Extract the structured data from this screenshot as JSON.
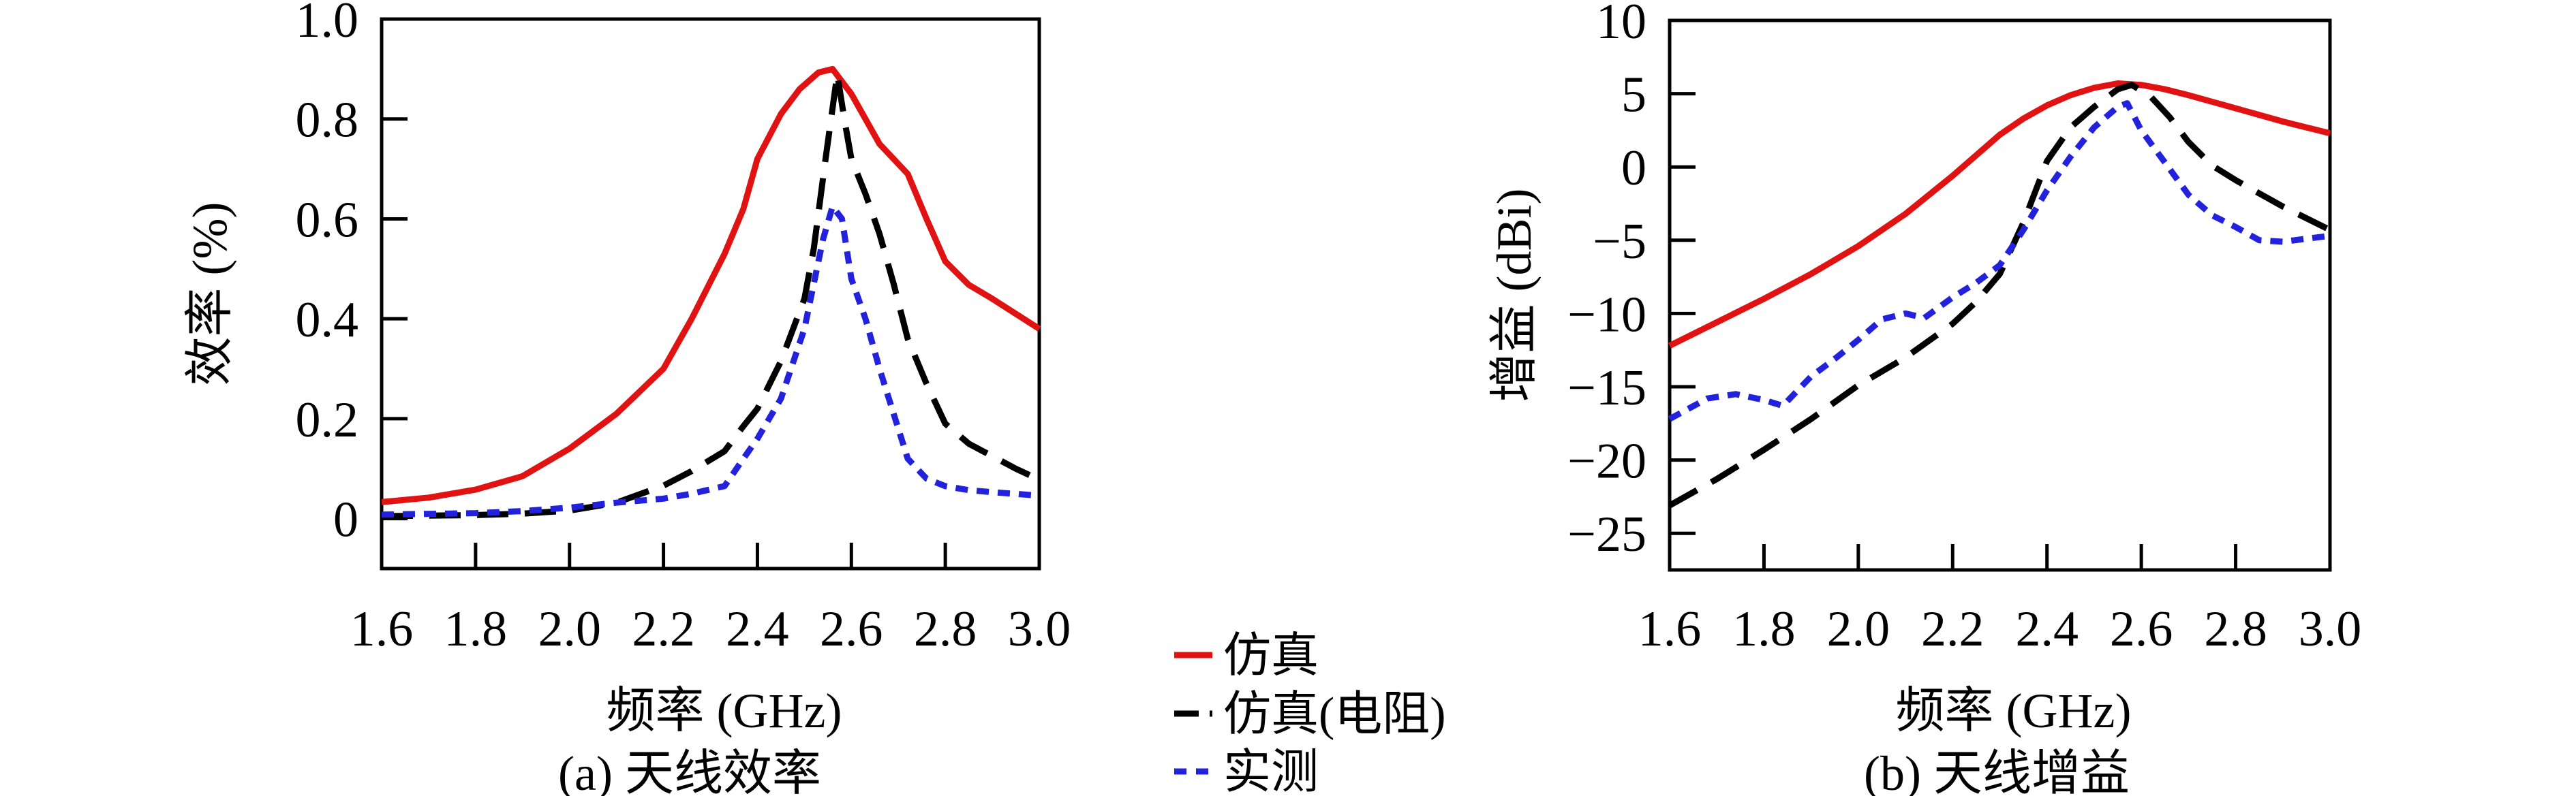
{
  "figure": {
    "background": "#ffffff",
    "frame_color": "#000000",
    "caption_a": "(a) 天线效率",
    "caption_b": "(b) 天线增益"
  },
  "legend": {
    "items": [
      {
        "label": "仿真",
        "color": "#e01212",
        "style": "solid"
      },
      {
        "label": "仿真(电阻)",
        "color": "#000000",
        "style": "dashdot"
      },
      {
        "label": "实测",
        "color": "#2222dd",
        "style": "dotted"
      }
    ]
  },
  "chart_data": [
    {
      "type": "line",
      "id": "efficiency",
      "caption": "(a) 天线效率",
      "xlabel": "频率 (GHz)",
      "ylabel": "效率 (%)",
      "xlim": [
        1.6,
        3.0
      ],
      "ylim": [
        -0.1,
        1.0
      ],
      "grid": false,
      "xtick_labels": [
        "1.6",
        "1.8",
        "2.0",
        "2.2",
        "2.4",
        "2.6",
        "2.8",
        "3.0"
      ],
      "xticks_inner": [
        1.8,
        2.0,
        2.2,
        2.4,
        2.6,
        2.8
      ],
      "ytick_labels": [
        "1.0",
        "0.8",
        "0.6",
        "0.4",
        "0.2",
        "0"
      ],
      "yticks": [
        1.0,
        0.8,
        0.6,
        0.4,
        0.2,
        0
      ],
      "series": [
        {
          "name": "仿真",
          "color": "#e01212",
          "style": "solid",
          "points": [
            [
              1.6,
              0.033
            ],
            [
              1.7,
              0.042
            ],
            [
              1.8,
              0.058
            ],
            [
              1.9,
              0.085
            ],
            [
              2.0,
              0.14
            ],
            [
              2.1,
              0.21
            ],
            [
              2.2,
              0.3
            ],
            [
              2.26,
              0.4
            ],
            [
              2.33,
              0.53
            ],
            [
              2.37,
              0.62
            ],
            [
              2.4,
              0.72
            ],
            [
              2.45,
              0.81
            ],
            [
              2.49,
              0.86
            ],
            [
              2.53,
              0.893
            ],
            [
              2.56,
              0.9
            ],
            [
              2.6,
              0.85
            ],
            [
              2.66,
              0.75
            ],
            [
              2.72,
              0.69
            ],
            [
              2.76,
              0.6
            ],
            [
              2.8,
              0.515
            ],
            [
              2.85,
              0.468
            ],
            [
              2.9,
              0.44
            ],
            [
              2.95,
              0.41
            ],
            [
              3.0,
              0.38
            ]
          ]
        },
        {
          "name": "仿真(电阻)",
          "color": "#000000",
          "style": "dashed",
          "points": [
            [
              1.6,
              0.005
            ],
            [
              1.8,
              0.007
            ],
            [
              1.9,
              0.01
            ],
            [
              2.0,
              0.016
            ],
            [
              2.1,
              0.032
            ],
            [
              2.2,
              0.066
            ],
            [
              2.26,
              0.095
            ],
            [
              2.33,
              0.135
            ],
            [
              2.37,
              0.185
            ],
            [
              2.4,
              0.22
            ],
            [
              2.45,
              0.315
            ],
            [
              2.5,
              0.44
            ],
            [
              2.52,
              0.54
            ],
            [
              2.545,
              0.72
            ],
            [
              2.57,
              0.89
            ],
            [
              2.585,
              0.8
            ],
            [
              2.6,
              0.72
            ],
            [
              2.63,
              0.65
            ],
            [
              2.66,
              0.57
            ],
            [
              2.69,
              0.47
            ],
            [
              2.72,
              0.36
            ],
            [
              2.76,
              0.27
            ],
            [
              2.8,
              0.19
            ],
            [
              2.85,
              0.15
            ],
            [
              2.9,
              0.125
            ],
            [
              2.95,
              0.1
            ],
            [
              3.0,
              0.078
            ]
          ]
        },
        {
          "name": "实测",
          "color": "#2222dd",
          "style": "dotted",
          "points": [
            [
              1.6,
              0.008
            ],
            [
              1.8,
              0.011
            ],
            [
              1.9,
              0.015
            ],
            [
              2.0,
              0.022
            ],
            [
              2.1,
              0.032
            ],
            [
              2.2,
              0.04
            ],
            [
              2.26,
              0.05
            ],
            [
              2.33,
              0.065
            ],
            [
              2.37,
              0.12
            ],
            [
              2.4,
              0.16
            ],
            [
              2.45,
              0.24
            ],
            [
              2.5,
              0.38
            ],
            [
              2.52,
              0.47
            ],
            [
              2.54,
              0.56
            ],
            [
              2.56,
              0.625
            ],
            [
              2.58,
              0.6
            ],
            [
              2.6,
              0.48
            ],
            [
              2.63,
              0.4
            ],
            [
              2.66,
              0.3
            ],
            [
              2.69,
              0.21
            ],
            [
              2.72,
              0.12
            ],
            [
              2.76,
              0.08
            ],
            [
              2.8,
              0.065
            ],
            [
              2.85,
              0.057
            ],
            [
              2.9,
              0.053
            ],
            [
              3.0,
              0.046
            ]
          ]
        }
      ]
    },
    {
      "type": "line",
      "id": "gain",
      "caption": "(b) 天线增益",
      "xlabel": "频率 (GHz)",
      "ylabel": "增益 (dBi)",
      "xlim": [
        1.6,
        3.0
      ],
      "ylim": [
        -27.5,
        10
      ],
      "grid": false,
      "xtick_labels": [
        "1.6",
        "1.8",
        "2.0",
        "2.2",
        "2.4",
        "2.6",
        "2.8",
        "3.0"
      ],
      "xticks_inner": [
        1.8,
        2.0,
        2.2,
        2.4,
        2.6,
        2.8
      ],
      "ytick_labels": [
        "10",
        "5",
        "0",
        "−5",
        "−10",
        "−15",
        "−20",
        "−25"
      ],
      "yticks": [
        10,
        5,
        0,
        -5,
        -10,
        -15,
        -20,
        -25
      ],
      "series": [
        {
          "name": "仿真",
          "color": "#e01212",
          "style": "solid",
          "points": [
            [
              1.6,
              -12.2
            ],
            [
              1.7,
              -10.6
            ],
            [
              1.8,
              -9.0
            ],
            [
              1.9,
              -7.3
            ],
            [
              2.0,
              -5.4
            ],
            [
              2.1,
              -3.2
            ],
            [
              2.2,
              -0.6
            ],
            [
              2.3,
              2.2
            ],
            [
              2.35,
              3.3
            ],
            [
              2.4,
              4.2
            ],
            [
              2.45,
              4.9
            ],
            [
              2.5,
              5.4
            ],
            [
              2.55,
              5.7
            ],
            [
              2.6,
              5.6
            ],
            [
              2.65,
              5.3
            ],
            [
              2.7,
              4.9
            ],
            [
              2.8,
              4.0
            ],
            [
              2.9,
              3.1
            ],
            [
              3.0,
              2.3
            ]
          ]
        },
        {
          "name": "仿真(电阻)",
          "color": "#000000",
          "style": "dashed",
          "points": [
            [
              1.6,
              -23.1
            ],
            [
              1.7,
              -21.3
            ],
            [
              1.8,
              -19.3
            ],
            [
              1.9,
              -17.2
            ],
            [
              2.0,
              -14.9
            ],
            [
              2.1,
              -13.0
            ],
            [
              2.2,
              -10.7
            ],
            [
              2.25,
              -9.2
            ],
            [
              2.3,
              -7.3
            ],
            [
              2.35,
              -3.8
            ],
            [
              2.4,
              0.4
            ],
            [
              2.45,
              2.7
            ],
            [
              2.5,
              4.1
            ],
            [
              2.55,
              5.3
            ],
            [
              2.58,
              5.6
            ],
            [
              2.62,
              4.8
            ],
            [
              2.66,
              3.4
            ],
            [
              2.7,
              1.7
            ],
            [
              2.75,
              0.1
            ],
            [
              2.8,
              -0.9
            ],
            [
              2.9,
              -2.7
            ],
            [
              3.0,
              -4.3
            ]
          ]
        },
        {
          "name": "实测",
          "color": "#2222dd",
          "style": "dotted",
          "points": [
            [
              1.6,
              -17.2
            ],
            [
              1.68,
              -15.8
            ],
            [
              1.74,
              -15.5
            ],
            [
              1.8,
              -15.9
            ],
            [
              1.84,
              -16.3
            ],
            [
              1.9,
              -14.3
            ],
            [
              1.95,
              -13.1
            ],
            [
              2.0,
              -11.8
            ],
            [
              2.05,
              -10.4
            ],
            [
              2.1,
              -10.0
            ],
            [
              2.14,
              -10.3
            ],
            [
              2.2,
              -8.9
            ],
            [
              2.25,
              -7.9
            ],
            [
              2.3,
              -6.7
            ],
            [
              2.35,
              -4.3
            ],
            [
              2.4,
              -1.6
            ],
            [
              2.45,
              0.7
            ],
            [
              2.5,
              2.7
            ],
            [
              2.55,
              4.1
            ],
            [
              2.57,
              4.35
            ],
            [
              2.6,
              2.5
            ],
            [
              2.65,
              0.3
            ],
            [
              2.7,
              -1.9
            ],
            [
              2.75,
              -3.3
            ],
            [
              2.8,
              -4.1
            ],
            [
              2.85,
              -5.0
            ],
            [
              2.9,
              -5.1
            ],
            [
              2.95,
              -4.9
            ],
            [
              3.0,
              -4.7
            ]
          ]
        }
      ]
    }
  ]
}
